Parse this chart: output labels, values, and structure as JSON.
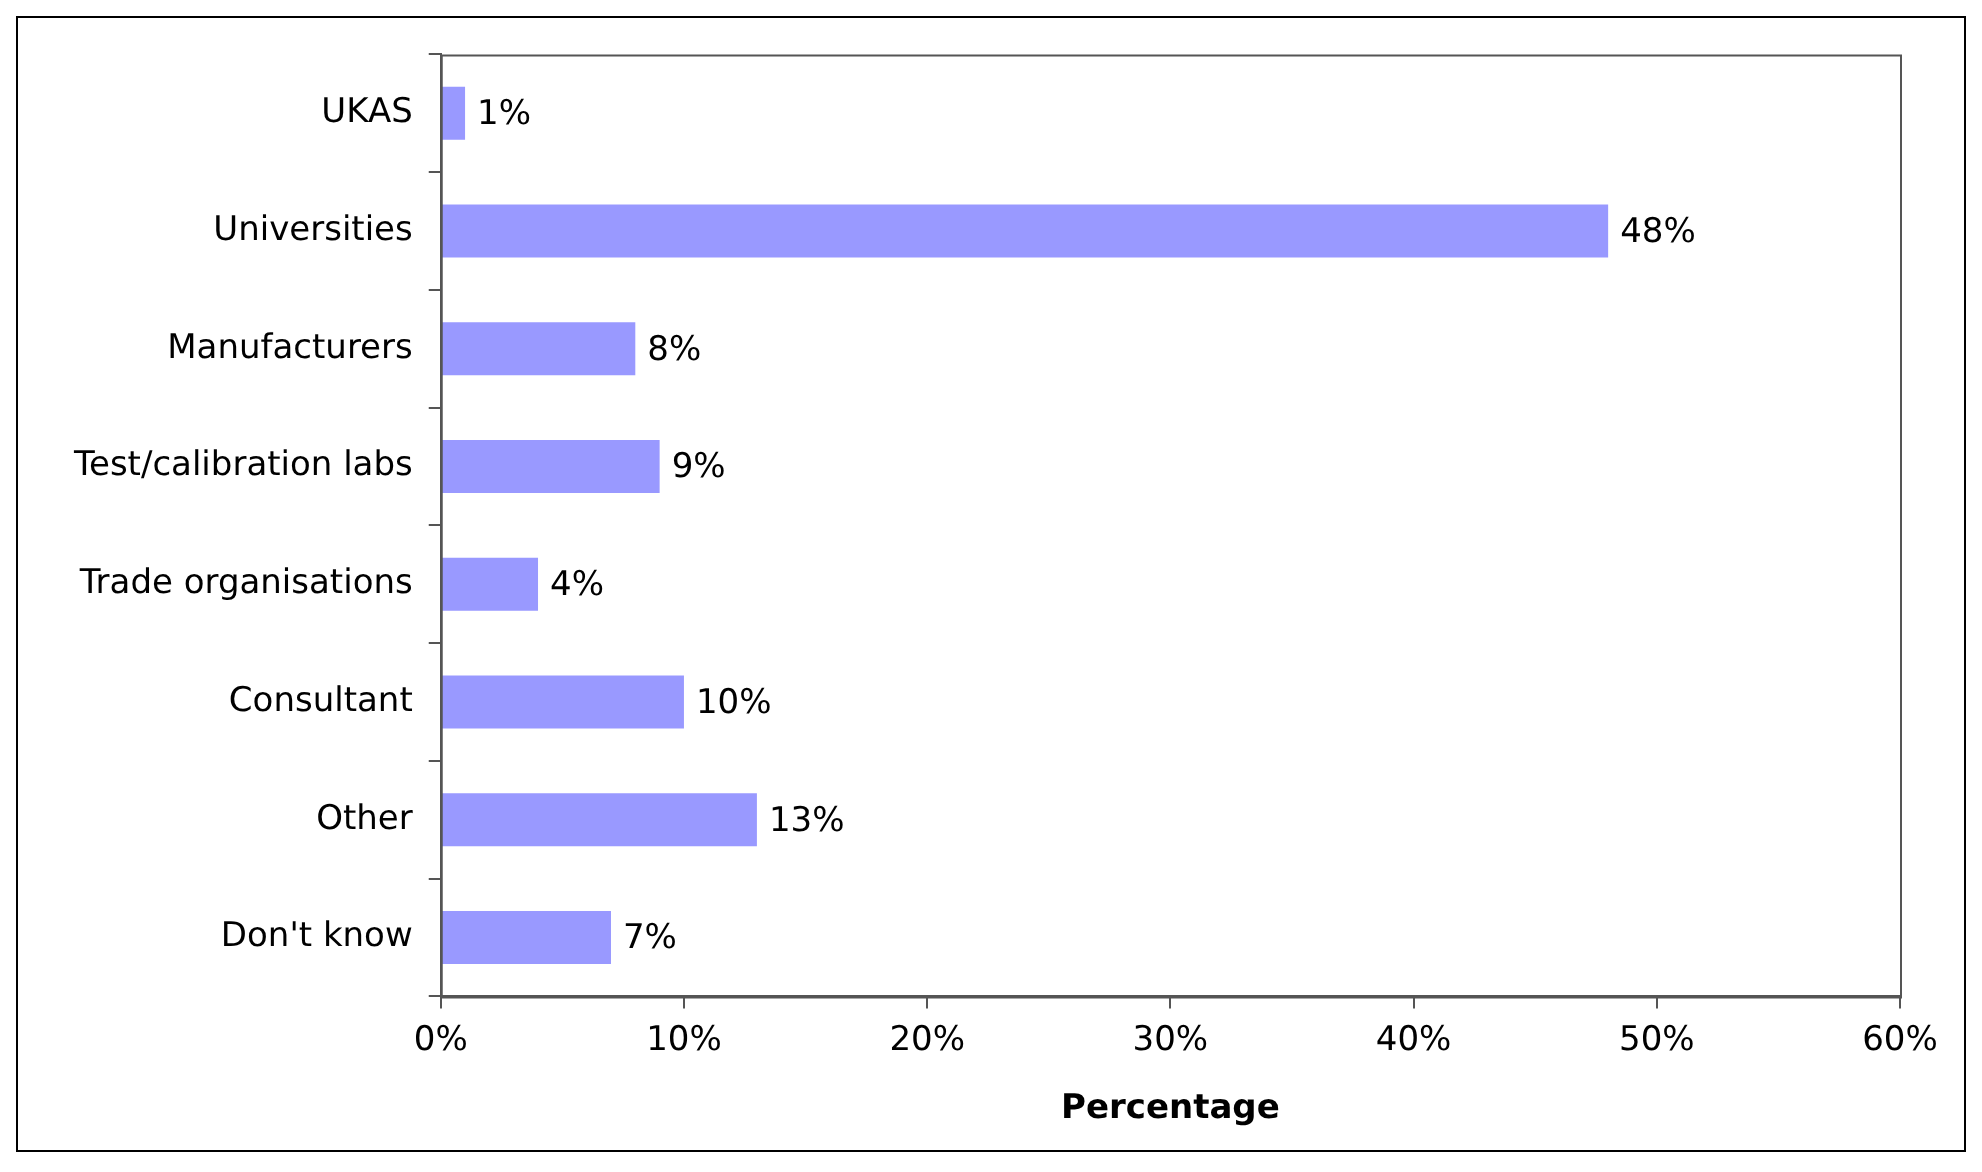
{
  "chart_data": {
    "type": "bar",
    "orientation": "horizontal",
    "xlabel": "Percentage",
    "categories": [
      "UKAS",
      "Universities",
      "Manufacturers",
      "Test/calibration labs",
      "Trade organisations",
      "Consultant",
      "Other",
      "Don't know"
    ],
    "values": [
      1,
      48,
      8,
      9,
      4,
      10,
      13,
      7
    ],
    "value_labels": [
      "1%",
      "48%",
      "8%",
      "9%",
      "4%",
      "10%",
      "13%",
      "7%"
    ],
    "color": "#9999ff",
    "xlim": [
      0,
      60
    ],
    "xticks": [
      {
        "value": 0,
        "label": "0%"
      },
      {
        "value": 10,
        "label": "10%"
      },
      {
        "value": 20,
        "label": "20%"
      },
      {
        "value": 30,
        "label": "30%"
      },
      {
        "value": 40,
        "label": "40%"
      },
      {
        "value": 50,
        "label": "50%"
      },
      {
        "value": 60,
        "label": "60%"
      }
    ],
    "grid": false,
    "legend": false
  }
}
